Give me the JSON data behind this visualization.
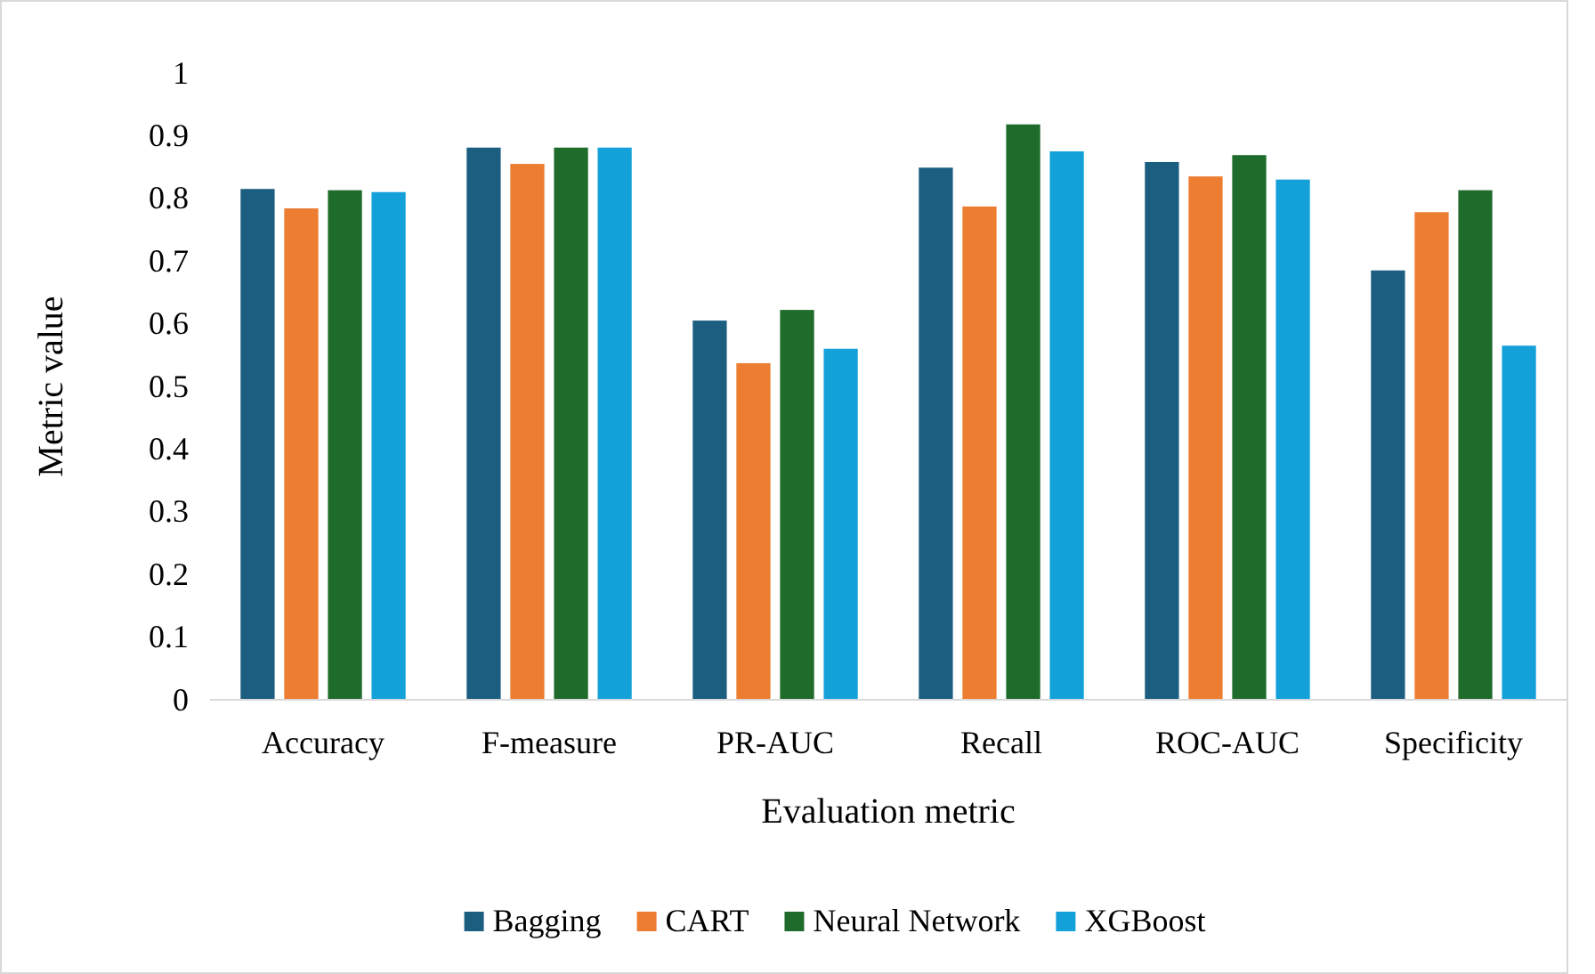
{
  "chart_data": {
    "type": "bar",
    "xlabel": "Evaluation metric",
    "ylabel": "Metric value",
    "categories": [
      "Accuracy",
      "F-measure",
      "PR-AUC",
      "Recall",
      "ROC-AUC",
      "Specificity"
    ],
    "series": [
      {
        "name": "Bagging",
        "color": "#1b5e80",
        "values": [
          0.815,
          0.881,
          0.605,
          0.849,
          0.858,
          0.685
        ]
      },
      {
        "name": "CART",
        "color": "#ed7d31",
        "values": [
          0.784,
          0.855,
          0.537,
          0.787,
          0.835,
          0.778
        ]
      },
      {
        "name": "Neural Network",
        "color": "#1e6b2b",
        "values": [
          0.813,
          0.881,
          0.622,
          0.918,
          0.869,
          0.813
        ]
      },
      {
        "name": "XGBoost",
        "color": "#14a1d9",
        "values": [
          0.81,
          0.881,
          0.56,
          0.875,
          0.83,
          0.565
        ]
      }
    ],
    "ylim": [
      0,
      1
    ],
    "yticks": [
      0,
      0.1,
      0.2,
      0.3,
      0.4,
      0.5,
      0.6,
      0.7,
      0.8,
      0.9,
      1
    ],
    "legend": "bottom",
    "grid": false
  }
}
